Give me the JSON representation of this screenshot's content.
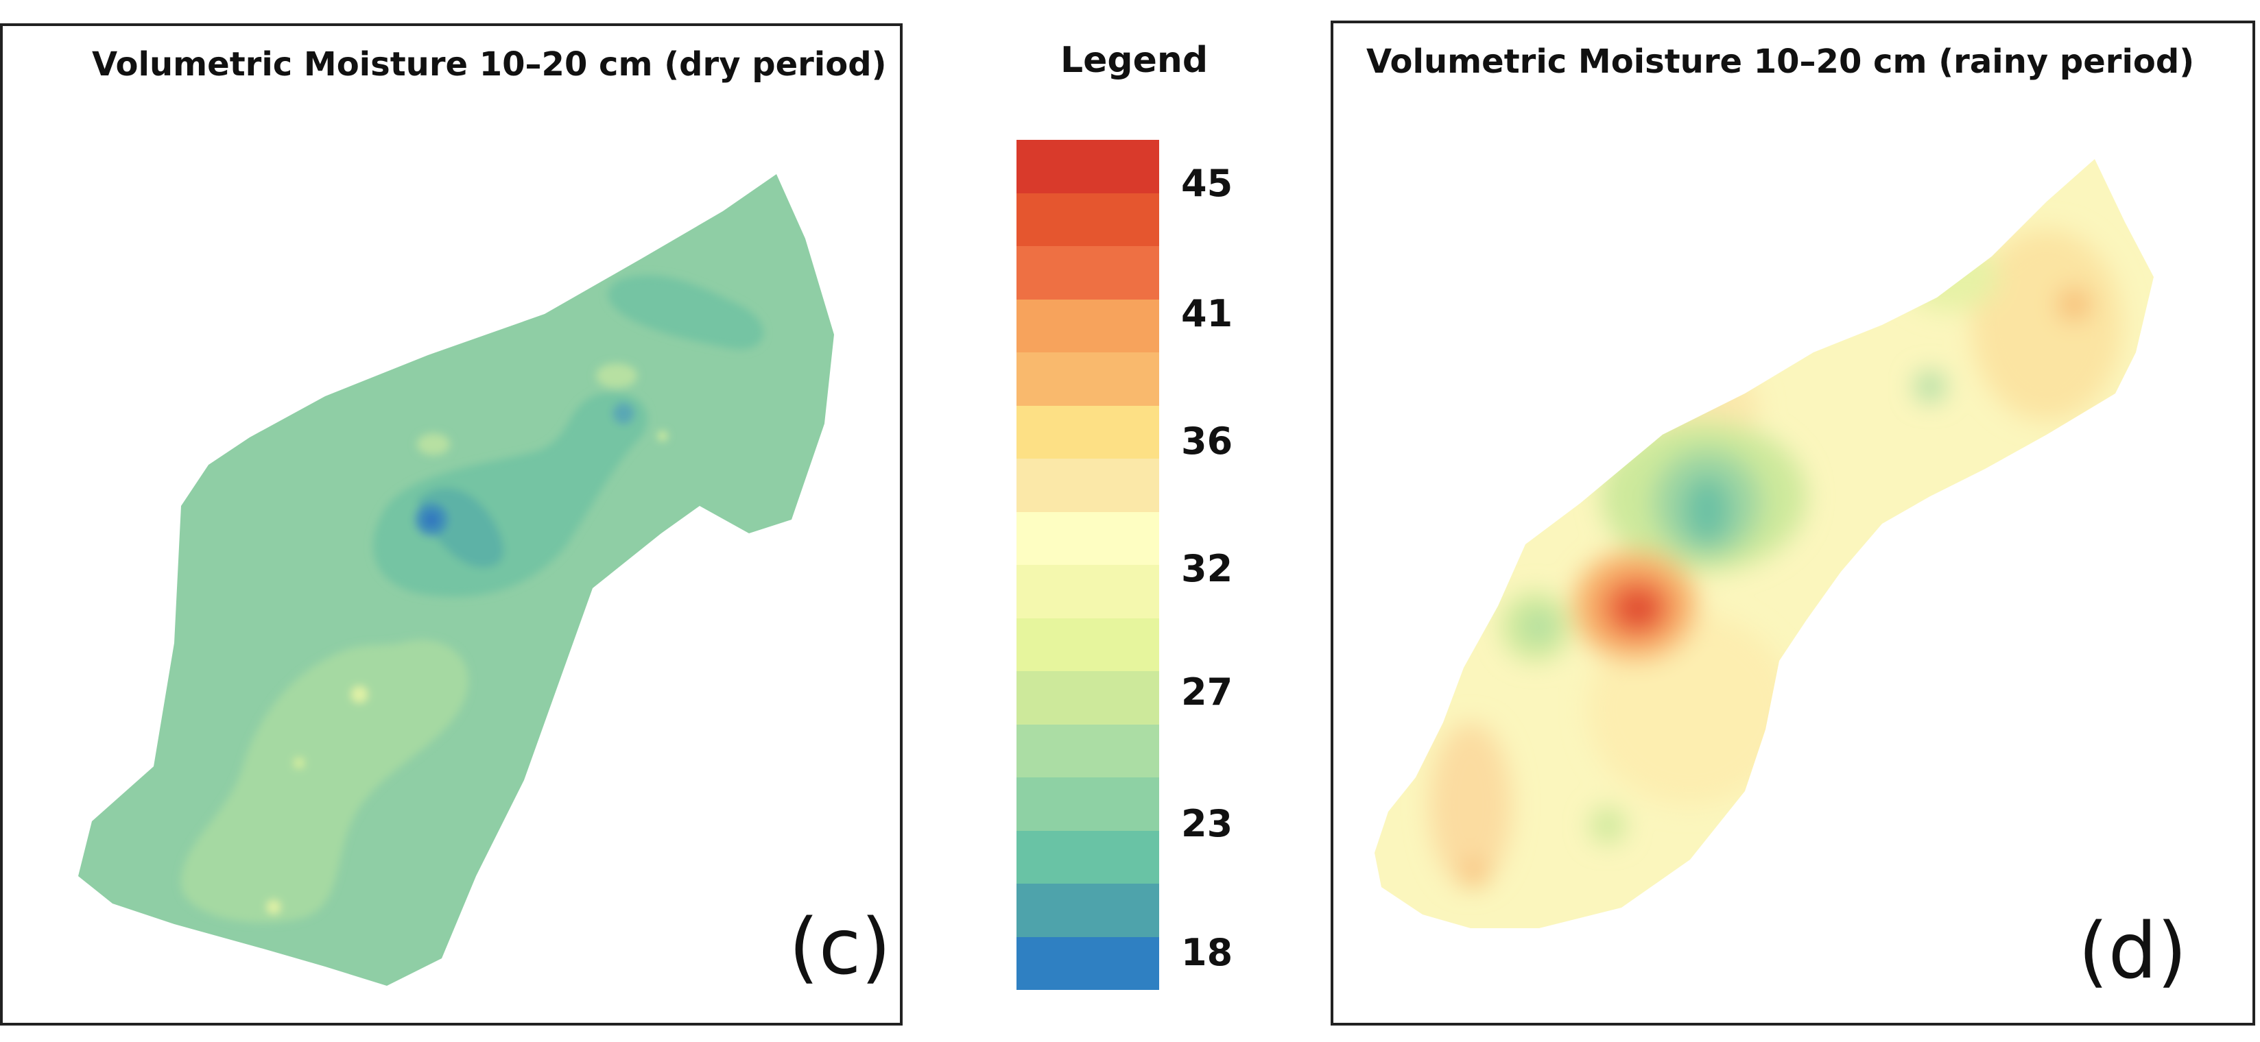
{
  "legend": {
    "title": "Legend",
    "ticks": [
      "45",
      "41",
      "36",
      "32",
      "27",
      "23",
      "18"
    ],
    "colors": [
      "#d93a2b",
      "#e5562f",
      "#ee7043",
      "#f7a35c",
      "#f9b96d",
      "#fde085",
      "#fbe8a8",
      "#fefec2",
      "#f4f8ae",
      "#e6f59d",
      "#cde99b",
      "#abdda4",
      "#8ed1a4",
      "#69c3a5",
      "#4ea3ab",
      "#2f80c2"
    ]
  },
  "panels": {
    "dry": {
      "title": "Volumetric Moisture 10–20 cm (dry period)",
      "letter": "(c)"
    },
    "rainy": {
      "title": "Volumetric Moisture 10–20 cm (rainy period)",
      "letter": "(d)"
    }
  }
}
